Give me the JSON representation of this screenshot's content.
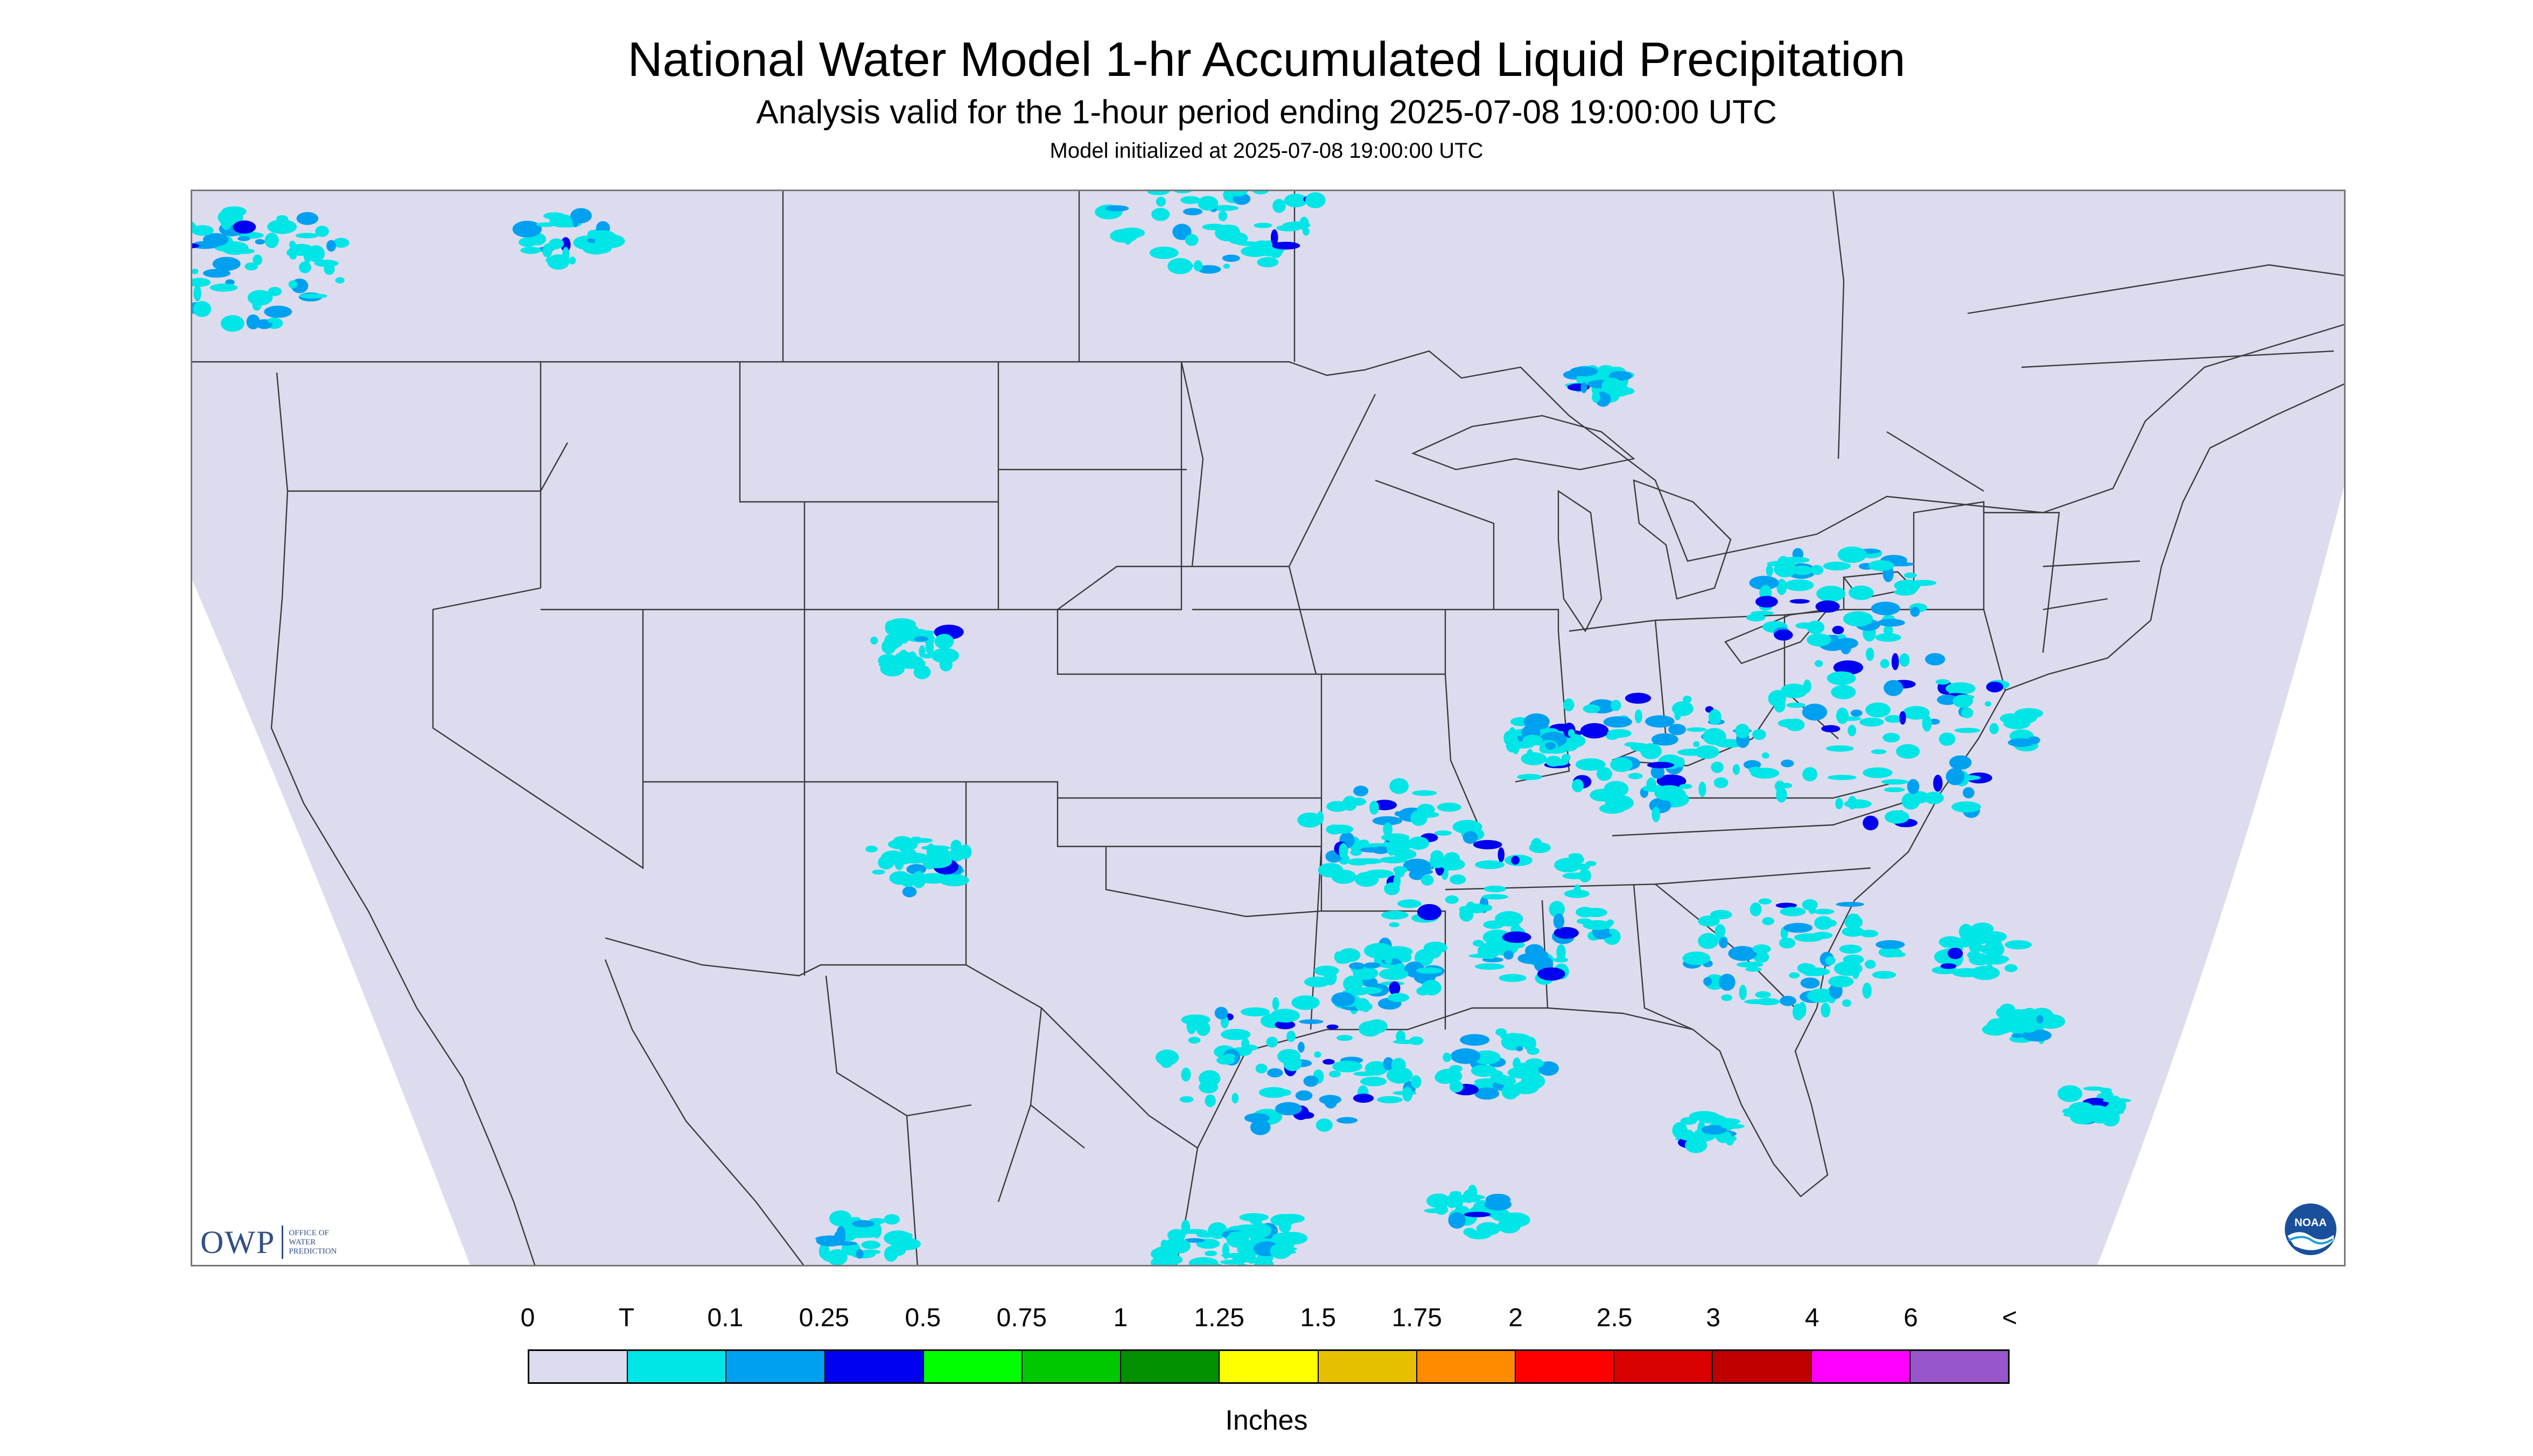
{
  "title": "National Water Model 1-hr Accumulated Liquid Precipitation",
  "subtitle": "Analysis valid for the 1-hour period ending 2025-07-08 19:00:00 UTC",
  "init_text": "Model initialized at 2025-07-08 19:00:00 UTC",
  "logo": {
    "mark": "OWP",
    "lines": [
      "Office of",
      "Water",
      "Prediction"
    ],
    "noaa": "NOAA"
  },
  "colors": {
    "map_bg": "#dcdcee",
    "outside_projection": "#ffffff",
    "boundary": "#3a3a3a"
  },
  "legend": {
    "units": "Inches",
    "labels": [
      "0",
      "T",
      "0.1",
      "0.25",
      "0.5",
      "0.75",
      "1",
      "1.25",
      "1.5",
      "1.75",
      "2",
      "2.5",
      "3",
      "4",
      "6",
      "<"
    ],
    "colors": [
      "#dcdcee",
      "#00e6e6",
      "#00a0f0",
      "#0000f0",
      "#00ff00",
      "#00c800",
      "#009000",
      "#ffff00",
      "#e6c000",
      "#ff8c00",
      "#ff0000",
      "#d80000",
      "#c00000",
      "#ff00ff",
      "#9955cc"
    ]
  }
}
